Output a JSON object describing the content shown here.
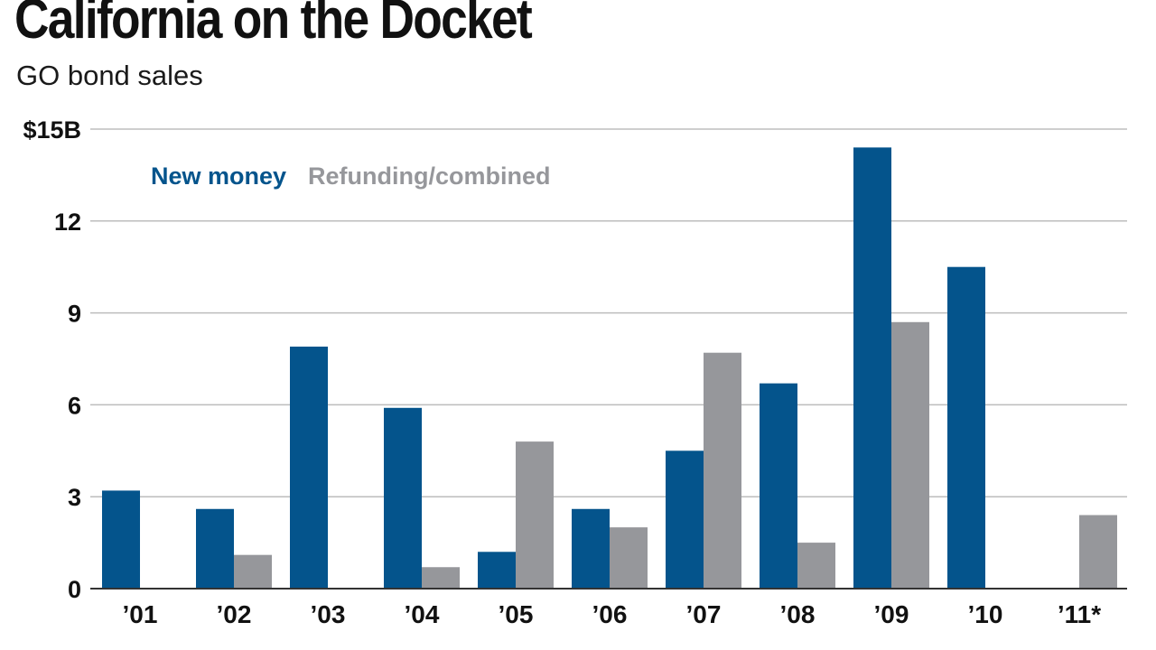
{
  "colors": {
    "new_money": "#04548c",
    "refunding": "#96979b",
    "grid": "#bdbdbd",
    "baseline": "#333333",
    "text": "#111111"
  },
  "chart_data": {
    "type": "bar",
    "title": "California on the Docket",
    "subtitle": "GO bond sales",
    "xlabel": "",
    "ylabel": "",
    "ylim": [
      0,
      15
    ],
    "y_ticks": [
      0,
      3,
      6,
      9,
      12,
      15
    ],
    "y_tick_labels": [
      "0",
      "3",
      "6",
      "9",
      "12",
      "$15B"
    ],
    "grid": true,
    "legend": "top-left",
    "categories": [
      "’01",
      "’02",
      "’03",
      "’04",
      "’05",
      "’06",
      "’07",
      "’08",
      "’09",
      "’10",
      "’11*"
    ],
    "series": [
      {
        "name": "New money",
        "color_key": "new_money",
        "values": [
          3.2,
          2.6,
          7.9,
          5.9,
          1.2,
          2.6,
          4.5,
          6.7,
          14.4,
          10.5,
          0
        ]
      },
      {
        "name": "Refunding/combined",
        "color_key": "refunding",
        "values": [
          0,
          1.1,
          0,
          0.7,
          4.8,
          2.0,
          7.7,
          1.5,
          8.7,
          0,
          2.4
        ]
      }
    ]
  }
}
